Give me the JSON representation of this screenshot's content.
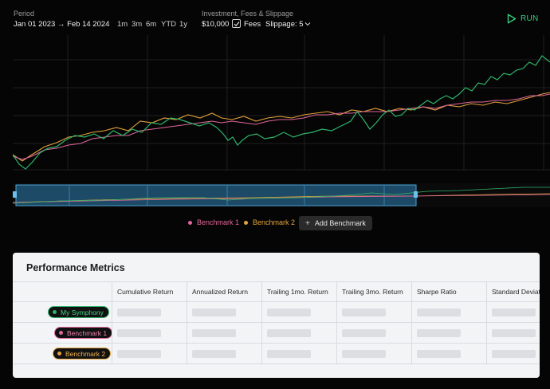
{
  "period": {
    "label": "Period",
    "range": "Jan 01 2023 → Feb 14 2024",
    "quick_ranges": [
      "1m",
      "3m",
      "6m",
      "YTD",
      "1y"
    ]
  },
  "investment": {
    "label": "Investment, Fees & Slippage",
    "amount": "$10,000",
    "fees_label": "Fees",
    "fees_checked": true,
    "slippage": "Slippage: 5"
  },
  "run_label": "RUN",
  "colors": {
    "symphony": "#2fb36a",
    "benchmark1": "#e0669a",
    "benchmark2": "#e3a23a",
    "run": "#37d07f"
  },
  "legend": {
    "items": [
      {
        "label": "Benchmark 1",
        "color": "#e0669a"
      },
      {
        "label": "Benchmark 2",
        "color": "#e3a23a"
      }
    ],
    "add_label": "Add Benchmark"
  },
  "metrics": {
    "title": "Performance Metrics",
    "columns": [
      "Cumulative Return",
      "Annualized Return",
      "Trailing 1mo. Return",
      "Trailing 3mo. Return",
      "Sharpe Ratio",
      "Standard Deviation"
    ],
    "rows": [
      {
        "label": "My Symphony",
        "color": "#2fb36a",
        "text_color": "#43d486",
        "border": "#2fb36a"
      },
      {
        "label": "Benchmark 1",
        "color": "#e0669a",
        "text_color": "#ef7fb0",
        "border": "#e0669a"
      },
      {
        "label": "Benchmark 2",
        "color": "#e3a23a",
        "text_color": "#f0b44d",
        "border": "#e3a23a"
      }
    ]
  }
}
